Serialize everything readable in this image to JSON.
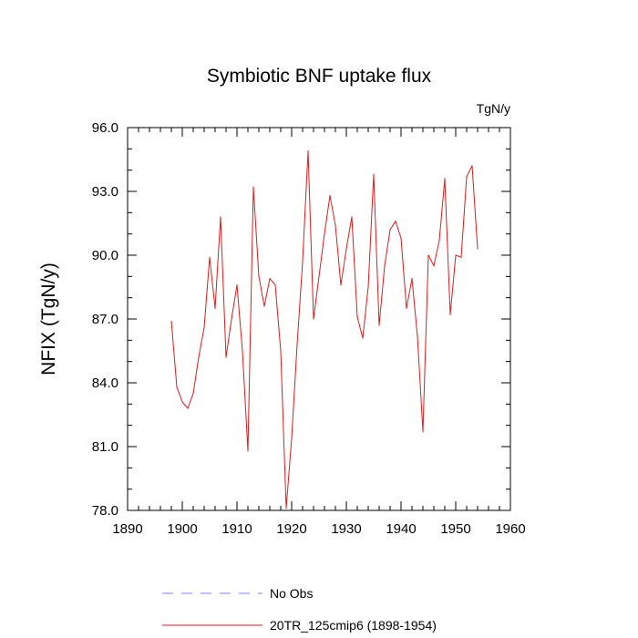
{
  "chart_data": {
    "type": "line",
    "title": "Symbiotic BNF uptake flux",
    "units": "TgN/y",
    "xlabel": "",
    "ylabel": "NFIX  (TgN/y)",
    "xlim": [
      1890,
      1960
    ],
    "ylim": [
      78.0,
      96.0
    ],
    "x_ticks": [
      "1890",
      "1900",
      "1910",
      "1920",
      "1930",
      "1940",
      "1950",
      "1960"
    ],
    "y_ticks": [
      "78.0",
      "81.0",
      "84.0",
      "87.0",
      "90.0",
      "93.0",
      "96.0"
    ],
    "grid": false,
    "legend_position": "bottom",
    "series": [
      {
        "name": "No Obs",
        "color": "#8080ff",
        "dash": true,
        "x": [],
        "values": []
      },
      {
        "name": "20TR_125cmip6 (1898-1954)",
        "color": "#e41a1c",
        "dash": false,
        "x": [
          1898,
          1899,
          1900,
          1901,
          1902,
          1903,
          1904,
          1905,
          1906,
          1907,
          1908,
          1909,
          1910,
          1911,
          1912,
          1913,
          1914,
          1915,
          1916,
          1917,
          1918,
          1919,
          1920,
          1921,
          1922,
          1923,
          1924,
          1925,
          1926,
          1927,
          1928,
          1929,
          1930,
          1931,
          1932,
          1933,
          1934,
          1935,
          1936,
          1937,
          1938,
          1939,
          1940,
          1941,
          1942,
          1943,
          1944,
          1945,
          1946,
          1947,
          1948,
          1949,
          1950,
          1951,
          1952,
          1953,
          1954
        ],
        "values": [
          86.9,
          83.8,
          83.1,
          82.8,
          83.5,
          85.2,
          86.6,
          89.9,
          87.5,
          91.8,
          85.2,
          87.0,
          88.6,
          85.5,
          80.8,
          93.2,
          89.0,
          87.6,
          88.9,
          88.6,
          85.5,
          78.1,
          81.4,
          85.8,
          89.7,
          94.9,
          87.0,
          89.0,
          91.0,
          92.8,
          91.4,
          88.6,
          90.3,
          91.8,
          87.1,
          86.1,
          88.5,
          93.8,
          86.7,
          89.5,
          91.2,
          91.6,
          90.8,
          87.5,
          88.9,
          86.2,
          81.7,
          90.0,
          89.5,
          90.7,
          93.6,
          87.2,
          90.0,
          89.9,
          93.7,
          94.2,
          90.3
        ]
      }
    ]
  }
}
